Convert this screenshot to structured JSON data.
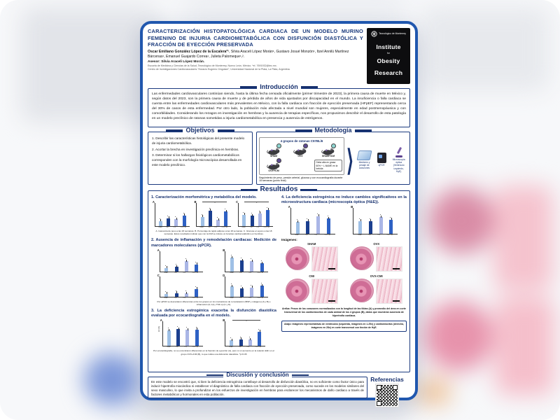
{
  "poster": {
    "header": {
      "title": "CARACTERIZACIÓN HISTOPATOLÓGICA CARDIACA DE UN MODELO MURINO FEMENINO DE INJURIA CARDIOMETABÓLICA CON DISFUNCIÓN DIASTÓLICA Y FRACCIÓN DE EYECCIÓN PRESERVADA",
      "authors_lead": "Oscar Emiliano González López de la Escalera*¹",
      "authors_rest": ", Silvia Araceli López Morán¹, Gustavo Josué Monzón¹, Itzel Annilú Martínez Bárcenas¹, Emanuel Guajardo Correa¹, Julieta Palomeque¹,².",
      "advisor": "Asesor: Silvia Araceli López Morán.",
      "affil1": "Escuela de Medicina y Ciencias de la Salud, Tecnológico de Monterrey, Nuevo León, México. *el. 7691932@tec.mx.",
      "affil2": "Centro de Investigaciones Cardiovasculares “Horacio Eugenio Cingolani”, Universidad Nacional de la Plata, La Plata, Argentina.",
      "logo_org": "Tecnológico de Monterrey",
      "logo_line1": "Institute",
      "logo_for": "for",
      "logo_line2": "Obesity",
      "logo_line3": "Research"
    },
    "intro": {
      "heading": "Introducción",
      "body": "Las enfermedades cardiovasculares continúan siendo, hasta la última fecha censada oficialmente (primer trimestre de 2023), la primera causa de muerte en México y, según datos del 2023, son la primera causa de muerte y de pérdida de años de vida ajustados por discapacidad en el mundo. La insuficiencia o falla cardiaca se cuenta entre las enfermedades cardiovasculares más prevalentes en México, con la falla cardiaca con fracción de eyección preservada (HFpEF) representando cerca del 30% de casos de esta enfermedad. Por otro lado, la población más afectada a nivel mundial son mujeres, especialmente en edad postmenopáusica y con comorbilidades. Considerando los rezagos en investigación en hembras y la ausencia de terapias específicas, nos propusimos describir el desarrollo de esta patología en un modelo preclínico de ratonas sometidas a injuria cardiometabólica en presencia y ausencia de estrógenos."
    },
    "objetivos": {
      "heading": "Objetivos",
      "items": [
        "1. Describir las características histológicas del presente modelo de injuria cardiometabólica.",
        "2. Acortar la brecha en investigación preclínica en hembras.",
        "3. Determinar si los hallazgos fisiológicos cardiometabólicos corresponden con la morfología microscópica desarrollada en este modelo preclínico."
      ]
    },
    "metodologia": {
      "heading": "Metodología",
      "groups_title": "4 grupos de ratonas C57BL/6",
      "groups": [
        {
          "label": "SHAM",
          "badge": "#8fd6d2"
        },
        {
          "label": "OVX",
          "badge": "#5f4b93"
        },
        {
          "label": "SHAM+ICM",
          "badge": "#8fd6d2"
        },
        {
          "label": "OVX+ICM",
          "badge": "#5f4b93"
        }
      ],
      "diet_note": "Dieta alta en grasa 60% + L-NAME en la bebida",
      "followup": "Seguimiento de peso, presión arterial, glucosa y con ecocardiografía durante 18 semanas (punto final).",
      "steps": [
        "Medición y pesaje de corazones",
        "qPCR",
        "Microscopía óptica (Ventrículo izquierdo, HyE)"
      ]
    },
    "resultados": {
      "heading": "Resultados",
      "s1": {
        "title": "1. Caracterización morfométrica y metabólica del modelo.",
        "caption": "A. Ganancia de peso a las 18 semanas. B. Porcentaje de tejido adiposo a las 18 semanas. C. Glucosa en ayuno a las 18 semanas. Estos resultados indican que con la ICM se induce un fenotipo cardiometabólico en hembras."
      },
      "s2": {
        "title": "2. Ausencia de inflamación y remodelación cardiacas: Medición de marcadores moleculares (qPCR).",
        "caption": "Por qPCR se descartaron diferencias entre los grupos en los marcadores de remodelación (BNP y colágeno) (A y B) e inflamación (IL-1β y TNF-α) (C y D)."
      },
      "s3": {
        "title": "3. La deficiencia estrogénica exacerba la disfunción diastólica evaluada por ecocardiografía en el modelo.",
        "caption": "Por ecocardiografía, no se encontraron diferencias en la fracción de eyección (A), pero sí un aumento en la relación E/E' en el grupo OVX+ICM (B), lo que indica una disfunción diastólica. *p<0.05"
      },
      "s4": {
        "title": "4. La deficiencia estrogénica no induce cambios significativos en la microestructura cardiaca (microscopía óptica (H&E)).",
        "images_label": "Imágenes:",
        "image_groups": [
          "SHAM",
          "OVX",
          "CMI",
          "OVX-CMI"
        ],
        "caption_top": "Arriba: Pesos de los corazones normalizados con la longitud de las tibias (A) y promedio del área en corte transversal de los cardiomiocitos de cada animal de los 4 grupos (B), datos que muestran ausencia de hipertrofia cardiaca.",
        "caption_bottom": "Abajo: Imágenes representativas de ventrículos (izquierda, imágenes en 1.25x) y cardiomiocitos (derecha, imágenes en 28x) en corte transversal con tinción de HyE."
      }
    },
    "discusion": {
      "heading": "Discusión y conclusión",
      "body": "En este modelo se encontró que, si bien la deficiencia estrogénica contribuye al desarrollo de disfunción diastólica, no es suficiente como factor único para inducir hipertrofia miocárdica ni establecer el diagnóstico de falla cardiaca con fracción de eyección preservada, como sucede en los modelos similares del sexo masculino, lo que invita a profundizar en los esfuerzos de investigación en hembras para esclarecer los mecanismos de daño cardiaco a través de factores metabólicos y hormonales en esta población."
    },
    "referencias": {
      "heading": "Referencias"
    }
  },
  "charts": {
    "type": "bar",
    "groups": [
      "SHAM",
      "CMI",
      "OVX",
      "OVX+CMI"
    ],
    "bar_colors": [
      "#9fc0e6",
      "#1b3f8f",
      "#aab6e6",
      "#2e61c4"
    ],
    "note": "valores relativos estimados (0-100) leídos de gráficas en miniatura",
    "list": [
      {
        "id": "c1a",
        "letter": "A",
        "values": [
          25,
          38,
          33,
          52
        ]
      },
      {
        "id": "c1b",
        "letter": "B",
        "values": [
          45,
          75,
          30,
          70
        ],
        "sig": "*"
      },
      {
        "id": "c1c",
        "letter": "C",
        "values": [
          55,
          50,
          62,
          78
        ],
        "sig": "*"
      },
      {
        "id": "c2a",
        "letter": "A",
        "values": [
          20,
          25,
          55,
          38
        ]
      },
      {
        "id": "c2b",
        "letter": "B",
        "values": [
          75,
          60,
          55,
          45
        ]
      },
      {
        "id": "c2c",
        "letter": "C",
        "values": [
          15,
          20,
          18,
          42
        ]
      },
      {
        "id": "c2d",
        "letter": "D",
        "values": [
          55,
          45,
          50,
          60
        ]
      },
      {
        "id": "c3a",
        "letter": "A",
        "ylab": "EF (%)",
        "values": [
          70,
          75,
          72,
          74
        ]
      },
      {
        "id": "c3b",
        "letter": "B",
        "values": [
          25,
          30,
          28,
          65
        ],
        "sig": "*"
      },
      {
        "id": "c4a",
        "letter": "A",
        "values": [
          50,
          55,
          75,
          65
        ]
      },
      {
        "id": "c4b",
        "letter": "B",
        "values": [
          55,
          55,
          70,
          60
        ]
      }
    ]
  },
  "colors": {
    "poster_border": "#2057ae",
    "navy_text": "#17316f",
    "logo_bg": "#0d0d0f",
    "histology_pink": "#e794b4",
    "backdrop_pink": "#e793ac",
    "backdrop_blue": "#7c97d9"
  }
}
